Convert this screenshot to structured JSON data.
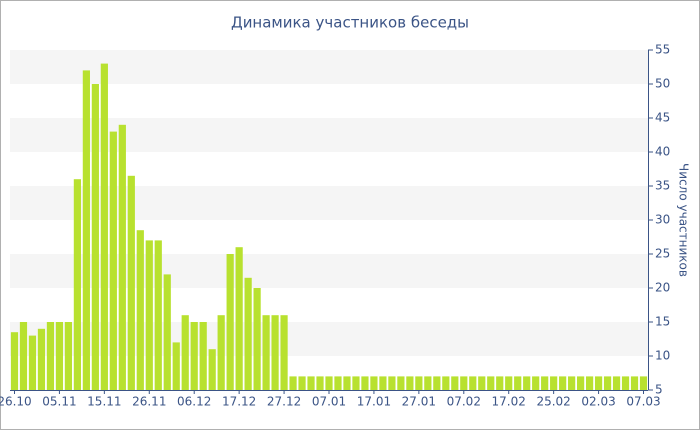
{
  "chart_data": {
    "type": "bar",
    "title": "Динамика участников беседы",
    "y_axis_label": "Число участников",
    "categories": [
      "26.10",
      null,
      null,
      null,
      null,
      "05.11",
      null,
      null,
      null,
      null,
      "15.11",
      null,
      null,
      null,
      null,
      "26.11",
      null,
      null,
      null,
      null,
      "06.12",
      null,
      null,
      null,
      null,
      "17.12",
      null,
      null,
      null,
      null,
      "27.12",
      null,
      null,
      null,
      null,
      "07.01",
      null,
      null,
      null,
      null,
      "17.01",
      null,
      null,
      null,
      null,
      "27.01",
      null,
      null,
      null,
      null,
      "07.02",
      null,
      null,
      null,
      null,
      "17.02",
      null,
      null,
      null,
      null,
      "25.02",
      null,
      null,
      null,
      null,
      "02.03",
      null,
      null,
      null,
      null,
      "07.03"
    ],
    "values": [
      13.5,
      15,
      13,
      14,
      15,
      15,
      15,
      36,
      52,
      50,
      53,
      43,
      44,
      36.5,
      28.5,
      27,
      27,
      22,
      12,
      16,
      15,
      15,
      11,
      16,
      25,
      26,
      21.5,
      20,
      16,
      16,
      16,
      7,
      7,
      7,
      7,
      7,
      7,
      7,
      7,
      7,
      7,
      7,
      7,
      7,
      7,
      7,
      7,
      7,
      7,
      7,
      7,
      7,
      7,
      7,
      7,
      7,
      7,
      7,
      7,
      7,
      7,
      7,
      7,
      7,
      7,
      7,
      7,
      7,
      7,
      7,
      7
    ],
    "color": "#b8e12f",
    "ylim": [
      5,
      55
    ],
    "yticks": [
      5,
      10,
      15,
      20,
      25,
      30,
      35,
      40,
      45,
      50,
      55
    ],
    "grid": true
  }
}
